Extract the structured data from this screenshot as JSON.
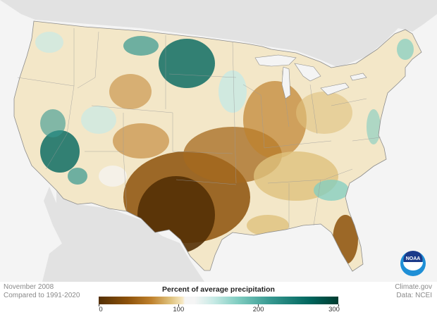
{
  "map": {
    "region": "Contiguous United States",
    "colors": {
      "ocean": "#f4f4f4",
      "land_outside": "#e2e2e2",
      "state_border": "#8c8c8c",
      "very_dry": "#543005",
      "dry": "#bf812d",
      "normal": "#f5f5f5",
      "wet": "#80cdc1",
      "very_wet": "#01665e"
    }
  },
  "caption": {
    "date": "November 2008",
    "baseline": "Compared to 1991-2020"
  },
  "credits": {
    "site": "Climate.gov",
    "source": "Data: NCEI"
  },
  "legend": {
    "title": "Percent of average precipitation",
    "ticks": [
      "0",
      "100",
      "200",
      "300"
    ],
    "tick_values": [
      0,
      100,
      200,
      300
    ],
    "range": [
      0,
      300
    ]
  },
  "logo": {
    "label": "NOAA"
  }
}
